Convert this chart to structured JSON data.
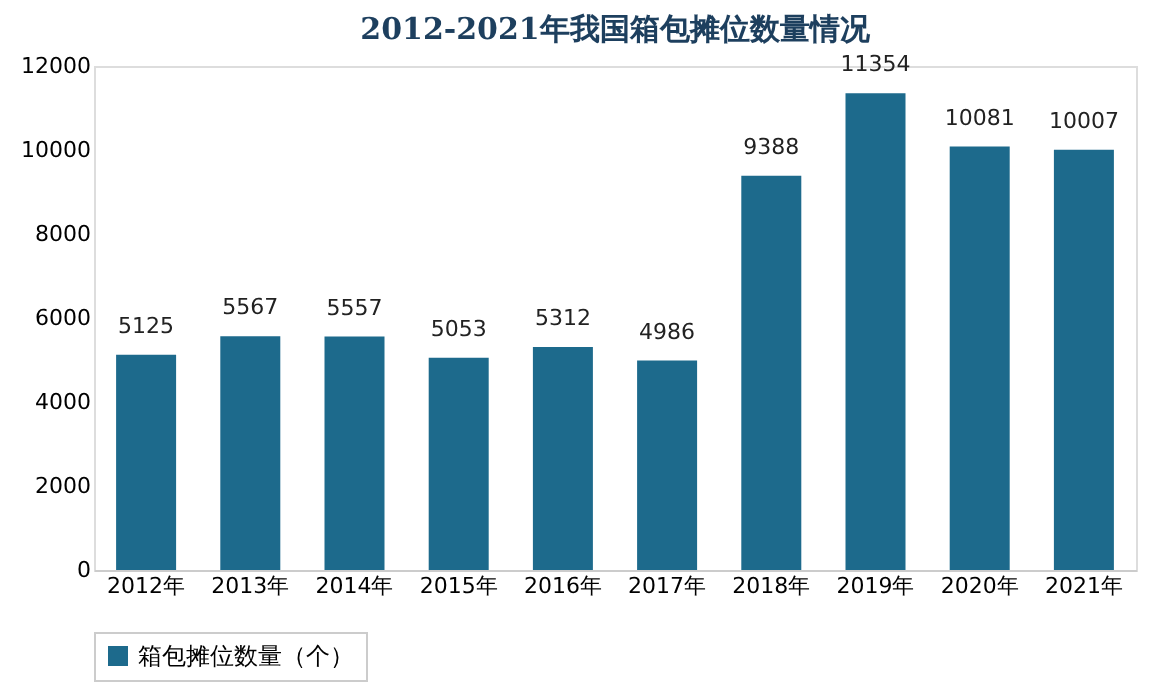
{
  "chart_data": {
    "type": "bar",
    "title": "2012-2021年我国箱包摊位数量情况",
    "categories": [
      "2012年",
      "2013年",
      "2014年",
      "2015年",
      "2016年",
      "2017年",
      "2018年",
      "2019年",
      "2020年",
      "2021年"
    ],
    "series": [
      {
        "name": "箱包摊位数量（个）",
        "color": "#1d6a8c",
        "values": [
          5125,
          5567,
          5557,
          5053,
          5312,
          4986,
          9388,
          11354,
          10081,
          10007
        ]
      }
    ],
    "ylim": [
      0,
      12000
    ],
    "yticks": [
      0,
      2000,
      4000,
      6000,
      8000,
      10000,
      12000
    ],
    "grid": false,
    "legend": "bottom",
    "data_labels": true
  }
}
